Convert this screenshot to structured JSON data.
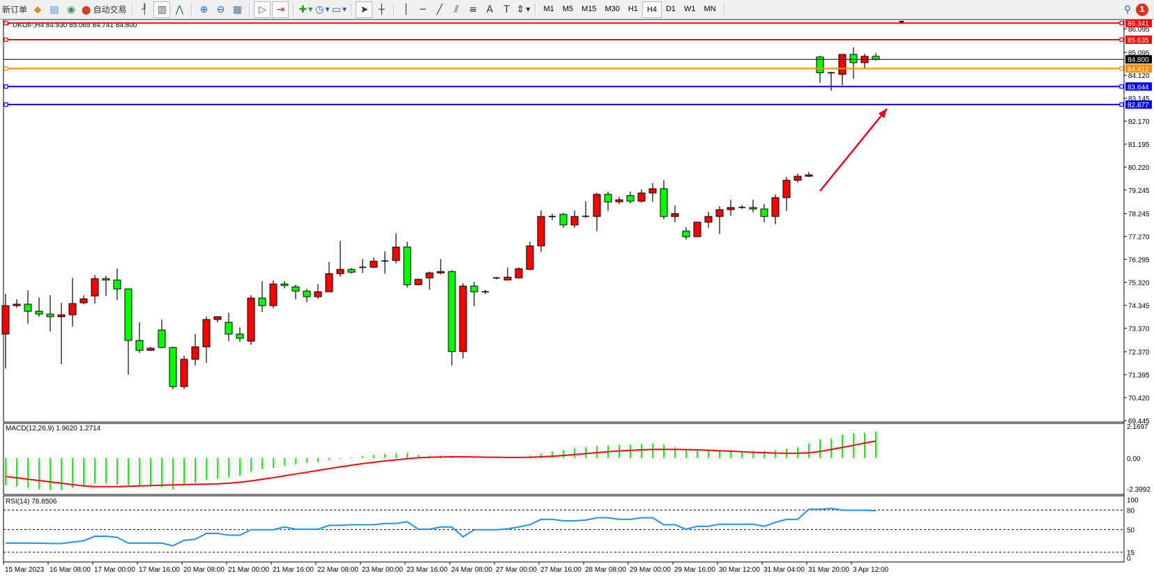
{
  "toolbar": {
    "new_order": "新订单",
    "auto_trading": "自动交易",
    "timeframes": [
      "M1",
      "M5",
      "M15",
      "M30",
      "H1",
      "H4",
      "D1",
      "W1",
      "MN"
    ],
    "selected_timeframe": "H4",
    "notification_count": "1",
    "icons": [
      "new-order-icon",
      "market-watch-icon",
      "history-icon",
      "signal-icon",
      "auto-trading-icon",
      "bar-chart-icon",
      "candlestick-icon",
      "line-chart-icon",
      "zoom-in-icon",
      "zoom-out-icon",
      "tile-windows-icon",
      "auto-scroll-icon",
      "chart-shift-icon",
      "indicators-icon",
      "periods-icon",
      "templates-icon",
      "cursor-icon",
      "crosshair-icon",
      "vertical-line-icon",
      "horizontal-line-icon",
      "trendline-icon",
      "channel-icon",
      "fibonacci-icon",
      "text-icon",
      "label-icon",
      "arrows-icon",
      "search-icon",
      "notification-icon"
    ]
  },
  "chart": {
    "header": "UKOil-,H4  84.930 85.065 84.741 84.800",
    "colors": {
      "bull": "#ff0000",
      "bear": "#00ff00",
      "macd_hist": "#00ff00",
      "macd_signal": "#ff0000",
      "rsi": "#1e90ff",
      "arrow": "#e8001c"
    },
    "price_ticks": [
      "86.095",
      "85.095",
      "84.120",
      "83.145",
      "82.170",
      "81.195",
      "80.220",
      "79.245",
      "78.245",
      "77.270",
      "76.295",
      "75.320",
      "74.345",
      "73.370",
      "72.370",
      "71.395",
      "70.420",
      "69.445"
    ],
    "levels": [
      {
        "price": "86.341",
        "color": "#ff0000"
      },
      {
        "price": "85.635",
        "color": "#ff0000"
      },
      {
        "price": "84.800",
        "color": "#000000"
      },
      {
        "price": "84.412",
        "color": "#ff8c00"
      },
      {
        "price": "83.644",
        "color": "#0000ff"
      },
      {
        "price": "82.877",
        "color": "#0000ff"
      }
    ],
    "time_labels": [
      "15 Mar 2023",
      "16 Mar 08:00",
      "17 Mar 00:00",
      "17 Mar 16:00",
      "20 Mar 08:00",
      "21 Mar 00:00",
      "21 Mar 16:00",
      "22 Mar 08:00",
      "23 Mar 00:00",
      "23 Mar 16:00",
      "24 Mar 08:00",
      "27 Mar 00:00",
      "27 Mar 16:00",
      "28 Mar 08:00",
      "29 Mar 00:00",
      "29 Mar 16:00",
      "30 Mar 12:00",
      "31 Mar 04:00",
      "31 Mar 20:00",
      "3 Apr 12:00"
    ],
    "arrow": {
      "from": {
        "candle": 73,
        "price": 79.2
      },
      "to": {
        "candle": 79,
        "price": 82.7
      }
    }
  },
  "chart_data": [
    {
      "type": "candlestick",
      "symbol": "UKOil-",
      "timeframe": "H4",
      "ylim": [
        69.445,
        86.341
      ],
      "ohlc": [
        [
          73.12,
          74.83,
          71.66,
          74.33
        ],
        [
          74.33,
          74.6,
          74.24,
          74.39
        ],
        [
          74.39,
          74.98,
          73.56,
          74.09
        ],
        [
          74.09,
          74.68,
          73.86,
          73.97
        ],
        [
          73.97,
          74.77,
          73.23,
          73.86
        ],
        [
          73.86,
          74.45,
          71.84,
          73.94
        ],
        [
          73.94,
          75.51,
          73.44,
          74.42
        ],
        [
          74.45,
          74.77,
          74.39,
          74.62
        ],
        [
          74.74,
          75.63,
          74.42,
          75.48
        ],
        [
          75.48,
          75.6,
          74.74,
          75.42
        ],
        [
          75.42,
          75.9,
          74.57,
          75.04
        ],
        [
          75.04,
          75.04,
          71.4,
          72.85
        ],
        [
          72.85,
          73.62,
          72.32,
          72.43
        ],
        [
          72.43,
          72.58,
          72.4,
          72.52
        ],
        [
          73.29,
          73.74,
          72.52,
          72.55
        ],
        [
          72.55,
          72.58,
          70.78,
          70.89
        ],
        [
          70.89,
          72.2,
          70.78,
          72.05
        ],
        [
          72.05,
          73.12,
          71.78,
          72.58
        ],
        [
          72.58,
          73.86,
          71.9,
          73.74
        ],
        [
          73.74,
          73.86,
          73.62,
          73.86
        ],
        [
          73.62,
          74.03,
          72.82,
          73.12
        ],
        [
          73.12,
          73.41,
          72.79,
          72.94
        ],
        [
          72.82,
          74.77,
          72.67,
          74.65
        ],
        [
          74.65,
          75.37,
          74.06,
          74.33
        ],
        [
          74.33,
          75.4,
          74.21,
          75.25
        ],
        [
          75.25,
          75.37,
          75.07,
          75.19
        ],
        [
          75.13,
          75.22,
          74.6,
          74.95
        ],
        [
          74.95,
          75.04,
          74.48,
          74.71
        ],
        [
          74.71,
          75.25,
          74.62,
          74.92
        ],
        [
          74.92,
          76.19,
          74.92,
          75.69
        ],
        [
          75.69,
          77.08,
          75.57,
          75.87
        ],
        [
          75.87,
          75.93,
          75.69,
          75.75
        ],
        [
          75.96,
          76.31,
          75.72,
          75.96
        ],
        [
          75.96,
          76.37,
          75.93,
          76.22
        ],
        [
          76.22,
          76.64,
          75.69,
          76.23
        ],
        [
          76.25,
          77.41,
          76.13,
          76.82
        ],
        [
          76.82,
          77.05,
          75.1,
          75.22
        ],
        [
          75.22,
          75.48,
          75.19,
          75.45
        ],
        [
          75.51,
          75.78,
          75.01,
          75.72
        ],
        [
          75.72,
          76.31,
          75.66,
          75.78
        ],
        [
          75.78,
          75.84,
          71.78,
          72.38
        ],
        [
          72.38,
          75.28,
          72.08,
          75.16
        ],
        [
          75.16,
          75.34,
          74.3,
          74.92
        ],
        [
          74.92,
          75.01,
          74.83,
          74.89
        ],
        [
          75.51,
          75.55,
          75.45,
          75.5
        ],
        [
          75.42,
          75.96,
          75.4,
          75.54
        ],
        [
          75.51,
          75.96,
          75.48,
          75.9
        ],
        [
          75.87,
          77.05,
          75.84,
          76.87
        ],
        [
          76.87,
          78.38,
          76.61,
          78.12
        ],
        [
          78.12,
          78.24,
          77.97,
          78.09
        ],
        [
          78.21,
          78.27,
          77.64,
          77.76
        ],
        [
          77.76,
          78.38,
          77.64,
          78.12
        ],
        [
          78.12,
          78.77,
          78.06,
          78.13
        ],
        [
          78.12,
          79.12,
          77.5,
          79.06
        ],
        [
          79.06,
          79.18,
          78.35,
          78.74
        ],
        [
          78.74,
          78.95,
          78.65,
          78.83
        ],
        [
          79.01,
          79.18,
          78.68,
          78.77
        ],
        [
          78.77,
          79.27,
          78.71,
          79.12
        ],
        [
          79.12,
          79.54,
          78.74,
          79.3
        ],
        [
          79.3,
          79.66,
          78.0,
          78.12
        ],
        [
          78.12,
          78.59,
          77.88,
          78.24
        ],
        [
          77.5,
          77.67,
          77.14,
          77.26
        ],
        [
          77.26,
          77.88,
          77.26,
          77.88
        ],
        [
          77.88,
          78.32,
          77.64,
          78.12
        ],
        [
          78.12,
          78.56,
          77.38,
          78.41
        ],
        [
          78.41,
          78.83,
          78.15,
          78.5
        ],
        [
          78.5,
          78.6,
          78.44,
          78.51
        ],
        [
          78.5,
          78.83,
          78.3,
          78.44
        ],
        [
          78.44,
          78.65,
          77.88,
          78.12
        ],
        [
          78.12,
          79.06,
          77.79,
          78.92
        ],
        [
          78.92,
          79.8,
          78.35,
          79.66
        ],
        [
          79.66,
          79.95,
          79.57,
          79.83
        ],
        [
          79.83,
          80.01,
          79.8,
          79.89
        ],
        [
          84.9,
          84.96,
          83.8,
          84.23
        ],
        [
          84.23,
          84.27,
          83.47,
          84.2
        ],
        [
          84.16,
          85.01,
          83.71,
          85.01
        ],
        [
          85.01,
          85.31,
          83.98,
          84.66
        ],
        [
          84.66,
          85.04,
          84.42,
          84.93
        ],
        [
          84.93,
          85.065,
          84.741,
          84.8
        ]
      ]
    },
    {
      "type": "bar+line",
      "title": "MACD(12,26,9) 1.9620 1.2714",
      "ylim": [
        -2.3992,
        2.1697
      ],
      "y_ticks": [
        "2.1697",
        "0.00",
        "-2.3992"
      ],
      "histogram": [
        -2.0,
        -2.1,
        -2.2,
        -2.3,
        -2.35,
        -2.35,
        -2.2,
        -2.1,
        -1.85,
        -1.85,
        -1.95,
        -2.0,
        -2.1,
        -2.1,
        -2.15,
        -2.3,
        -1.95,
        -1.8,
        -1.6,
        -1.5,
        -1.4,
        -1.3,
        -1.0,
        -0.8,
        -0.7,
        -0.55,
        -0.45,
        -0.35,
        -0.3,
        -0.15,
        -0.05,
        0.05,
        0.15,
        0.25,
        0.3,
        0.35,
        0.4,
        0.25,
        0.2,
        0.2,
        0.15,
        -0.05,
        -0.05,
        -0.02,
        0.0,
        0.0,
        0.05,
        0.2,
        0.35,
        0.5,
        0.6,
        0.75,
        0.8,
        0.9,
        0.95,
        1.0,
        1.0,
        1.05,
        1.1,
        1.0,
        0.8,
        0.65,
        0.6,
        0.6,
        0.6,
        0.6,
        0.55,
        0.55,
        0.55,
        0.6,
        0.7,
        0.8,
        1.1,
        1.4,
        1.45,
        1.75,
        1.85,
        1.9,
        1.962
      ],
      "signal": [
        -1.35,
        -1.45,
        -1.55,
        -1.65,
        -1.75,
        -1.85,
        -1.95,
        -2.05,
        -2.1,
        -2.1,
        -2.1,
        -2.08,
        -2.05,
        -2.03,
        -2.0,
        -1.98,
        -1.95,
        -1.93,
        -1.92,
        -1.9,
        -1.85,
        -1.78,
        -1.68,
        -1.56,
        -1.44,
        -1.3,
        -1.17,
        -1.04,
        -0.9,
        -0.77,
        -0.64,
        -0.52,
        -0.4,
        -0.3,
        -0.2,
        -0.12,
        -0.04,
        0.03,
        0.07,
        0.09,
        0.1,
        0.1,
        0.09,
        0.08,
        0.07,
        0.06,
        0.06,
        0.07,
        0.1,
        0.15,
        0.2,
        0.27,
        0.34,
        0.41,
        0.48,
        0.54,
        0.58,
        0.62,
        0.65,
        0.65,
        0.65,
        0.64,
        0.62,
        0.59,
        0.55,
        0.52,
        0.48,
        0.44,
        0.41,
        0.38,
        0.37,
        0.37,
        0.4,
        0.5,
        0.65,
        0.8,
        0.95,
        1.12,
        1.2714
      ]
    },
    {
      "type": "line",
      "title": "RSI(14) 78.8506",
      "ylim": [
        0,
        100
      ],
      "y_ticks": [
        "100",
        "80",
        "50",
        "15",
        "0"
      ],
      "levels": [
        80,
        50,
        15
      ],
      "values": [
        29.1,
        29.1,
        29.1,
        29,
        28.6,
        28.4,
        30.5,
        32.7,
        39.7,
        39.7,
        38,
        29.1,
        29.1,
        29.1,
        29.1,
        24.9,
        33.4,
        35,
        44,
        44,
        41.2,
        41.2,
        49.6,
        49.6,
        49.6,
        53.9,
        50.4,
        50.4,
        50.4,
        56.4,
        56.4,
        57.4,
        57.4,
        57.4,
        59.2,
        59.2,
        62,
        50.4,
        50.4,
        53.9,
        53.9,
        38.7,
        49.6,
        49.6,
        49.6,
        51,
        53.9,
        57.4,
        65.6,
        65.6,
        63.4,
        63.4,
        64.5,
        68,
        68,
        65.6,
        65.6,
        68,
        68,
        57.4,
        57.4,
        50.4,
        54.9,
        54.9,
        58.1,
        58.1,
        58.1,
        58.1,
        54.9,
        61,
        65.6,
        65.6,
        81.1,
        81.1,
        82.5,
        79.7,
        79.7,
        79.7,
        78.85
      ]
    }
  ]
}
